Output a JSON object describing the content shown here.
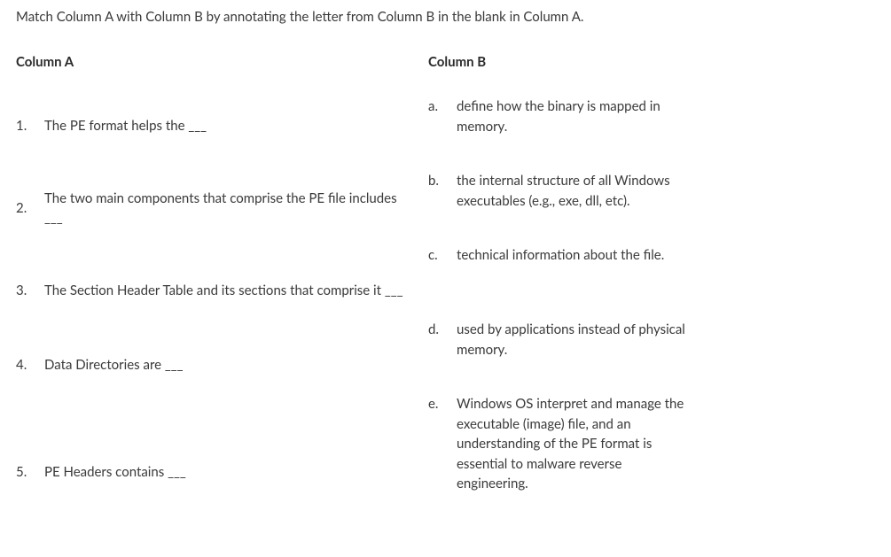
{
  "instruction": "Match Column A with Column B by annotating the letter from Column B in the blank in Column A.",
  "columnA": {
    "header": "Column A",
    "items": [
      {
        "num": "1.",
        "text": "The PE format helps the ___"
      },
      {
        "num": "2.",
        "text": "The two main components that comprise the PE file includes ___"
      },
      {
        "num": "3.",
        "text": "The Section Header Table and its sections that comprise it ___"
      },
      {
        "num": "4.",
        "text": "Data Directories are ___"
      },
      {
        "num": "5.",
        "text": "PE Headers contains ___"
      }
    ]
  },
  "columnB": {
    "header": "Column B",
    "items": [
      {
        "num": "a.",
        "text": "define how the binary is mapped in memory."
      },
      {
        "num": "b.",
        "text": "the internal structure of all Windows executables (e.g., exe, dll, etc)."
      },
      {
        "num": "c.",
        "text": "technical information about the file."
      },
      {
        "num": "d.",
        "text": "used by applications instead of physical memory."
      },
      {
        "num": "e.",
        "text": "Windows OS interpret and manage the executable (image) file, and an understanding of the PE format is essential to malware reverse engineering."
      }
    ]
  },
  "layout": {
    "rowHeightsA": [
      66,
      84,
      66,
      66,
      140
    ]
  }
}
